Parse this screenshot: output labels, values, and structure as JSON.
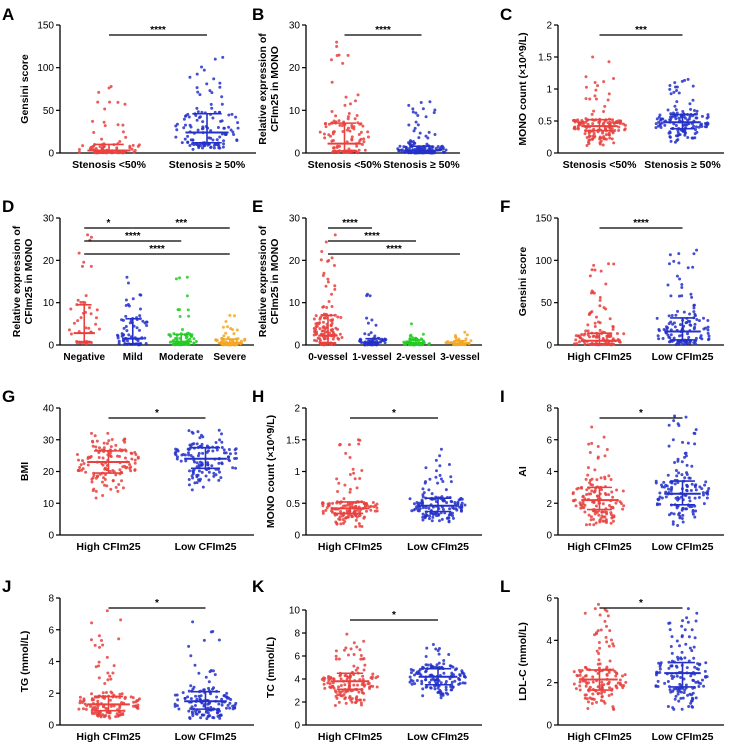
{
  "colors": {
    "red": "#e8413e",
    "blue": "#2431c9",
    "green": "#22cc22",
    "orange": "#f5a623",
    "axis": "#000000"
  },
  "chart_data": [
    {
      "type": "scatter",
      "panel": "A",
      "ylabel": "Gensini score",
      "ylim": [
        0,
        150
      ],
      "yticks": [
        0,
        50,
        100,
        150
      ],
      "categories": [
        "Stenosis <50%",
        "Stenosis ≥ 50%"
      ],
      "series": [
        {
          "name": "Stenosis <50%",
          "color": "red",
          "n": 80,
          "median": 3,
          "q1": 0.5,
          "q3": 10,
          "min": 0,
          "max": 78
        },
        {
          "name": "Stenosis ≥ 50%",
          "color": "blue",
          "n": 130,
          "median": 24,
          "q1": 12,
          "q3": 46,
          "min": 3,
          "max": 112
        }
      ],
      "sig": [
        {
          "from": 0,
          "to": 1,
          "level": 0,
          "label": "****"
        }
      ]
    },
    {
      "type": "scatter",
      "panel": "B",
      "ylabel": [
        "Relative expression of",
        "CFIm25 in MONO"
      ],
      "ylim": [
        0,
        30
      ],
      "yticks": [
        0,
        10,
        20,
        30
      ],
      "categories": [
        "Stenosis <50%",
        "Stenosis ≥ 50%"
      ],
      "series": [
        {
          "name": "Stenosis <50%",
          "color": "red",
          "n": 110,
          "median": 2.2,
          "q1": 0.5,
          "q3": 7,
          "min": 0,
          "max": 26
        },
        {
          "name": "Stenosis ≥ 50%",
          "color": "blue",
          "n": 140,
          "median": 0.6,
          "q1": 0.1,
          "q3": 1.6,
          "min": 0,
          "max": 12
        }
      ],
      "sig": [
        {
          "from": 0,
          "to": 1,
          "level": 0,
          "label": "****"
        }
      ]
    },
    {
      "type": "scatter",
      "panel": "C",
      "ylabel": "MONO count (×10^9/L)",
      "ylim": [
        0,
        2
      ],
      "yticks": [
        0,
        0.5,
        1,
        1.5,
        2
      ],
      "categories": [
        "Stenosis <50%",
        "Stenosis ≥ 50%"
      ],
      "series": [
        {
          "name": "Stenosis <50%",
          "color": "red",
          "n": 150,
          "median": 0.42,
          "q1": 0.35,
          "q3": 0.52,
          "min": 0.1,
          "max": 1.5
        },
        {
          "name": "Stenosis ≥ 50%",
          "color": "blue",
          "n": 140,
          "median": 0.48,
          "q1": 0.38,
          "q3": 0.6,
          "min": 0.15,
          "max": 1.15
        }
      ],
      "sig": [
        {
          "from": 0,
          "to": 1,
          "level": 0,
          "label": "***"
        }
      ]
    },
    {
      "type": "scatter",
      "panel": "D",
      "ylabel": [
        "Relative expression of",
        "CFIm25 in MONO"
      ],
      "ylim": [
        0,
        30
      ],
      "yticks": [
        0,
        10,
        20,
        30
      ],
      "categories": [
        "Negative",
        "Mild",
        "Moderate",
        "Severe"
      ],
      "series": [
        {
          "name": "Negative",
          "color": "red",
          "n": 45,
          "median": 2.8,
          "q1": 0.8,
          "q3": 9.5,
          "min": 0,
          "max": 26
        },
        {
          "name": "Mild",
          "color": "blue",
          "n": 70,
          "median": 1.5,
          "q1": 0.3,
          "q3": 6.2,
          "min": 0,
          "max": 16
        },
        {
          "name": "Moderate",
          "color": "green",
          "n": 70,
          "median": 0.8,
          "q1": 0.2,
          "q3": 2.5,
          "min": 0,
          "max": 16
        },
        {
          "name": "Severe",
          "color": "orange",
          "n": 60,
          "median": 0.5,
          "q1": 0.1,
          "q3": 1.4,
          "min": 0,
          "max": 7
        }
      ],
      "sig": [
        {
          "from": 0,
          "to": 1,
          "level": 0,
          "label": "*"
        },
        {
          "from": 1,
          "to": 3,
          "level": 0,
          "label": "***"
        },
        {
          "from": 0,
          "to": 2,
          "level": 1,
          "label": "****"
        },
        {
          "from": 0,
          "to": 3,
          "level": 2,
          "label": "****"
        }
      ]
    },
    {
      "type": "scatter",
      "panel": "E",
      "ylabel": [
        "Relative expression of",
        "CFIm25 in MONO"
      ],
      "ylim": [
        0,
        30
      ],
      "yticks": [
        0,
        10,
        20,
        30
      ],
      "categories": [
        "0-vessel",
        "1-vessel",
        "2-vessel",
        "3-vessel"
      ],
      "series": [
        {
          "name": "0-vessel",
          "color": "red",
          "n": 130,
          "median": 2.2,
          "q1": 0.5,
          "q3": 7,
          "min": 0,
          "max": 26
        },
        {
          "name": "1-vessel",
          "color": "blue",
          "n": 60,
          "median": 0.6,
          "q1": 0.1,
          "q3": 1.5,
          "min": 0,
          "max": 12
        },
        {
          "name": "2-vessel",
          "color": "green",
          "n": 45,
          "median": 0.5,
          "q1": 0.1,
          "q3": 1.2,
          "min": 0,
          "max": 5
        },
        {
          "name": "3-vessel",
          "color": "orange",
          "n": 30,
          "median": 0.4,
          "q1": 0.1,
          "q3": 1.0,
          "min": 0,
          "max": 3
        }
      ],
      "sig": [
        {
          "from": 0,
          "to": 1,
          "level": 0,
          "label": "****"
        },
        {
          "from": 0,
          "to": 2,
          "level": 1,
          "label": "****"
        },
        {
          "from": 0,
          "to": 3,
          "level": 2,
          "label": "****"
        }
      ]
    },
    {
      "type": "scatter",
      "panel": "F",
      "ylabel": "Gensini score",
      "ylim": [
        0,
        150
      ],
      "yticks": [
        0,
        50,
        100,
        150
      ],
      "categories": [
        "High CFIm25",
        "Low CFIm25"
      ],
      "series": [
        {
          "name": "High CFIm25",
          "color": "red",
          "n": 130,
          "median": 5,
          "q1": 1,
          "q3": 14,
          "min": 0,
          "max": 96
        },
        {
          "name": "Low CFIm25",
          "color": "blue",
          "n": 130,
          "median": 16,
          "q1": 6,
          "q3": 32,
          "min": 0,
          "max": 112
        }
      ],
      "sig": [
        {
          "from": 0,
          "to": 1,
          "level": 0,
          "label": "****"
        }
      ]
    },
    {
      "type": "scatter",
      "panel": "G",
      "ylabel": "BMI",
      "ylim": [
        0,
        40
      ],
      "yticks": [
        0,
        10,
        20,
        30,
        40
      ],
      "categories": [
        "High CFIm25",
        "Low CFIm25"
      ],
      "series": [
        {
          "name": "High CFIm25",
          "color": "red",
          "n": 130,
          "median": 23,
          "q1": 19.5,
          "q3": 26.5,
          "min": 10.5,
          "max": 32
        },
        {
          "name": "Low CFIm25",
          "color": "blue",
          "n": 130,
          "median": 24,
          "q1": 21,
          "q3": 27.5,
          "min": 14,
          "max": 33
        }
      ],
      "sig": [
        {
          "from": 0,
          "to": 1,
          "level": 0,
          "label": "*"
        }
      ]
    },
    {
      "type": "scatter",
      "panel": "H",
      "ylabel": "MONO count (×10^9/L)",
      "ylim": [
        0,
        2
      ],
      "yticks": [
        0,
        0.5,
        1,
        1.5,
        2
      ],
      "categories": [
        "High CFIm25",
        "Low CFIm25"
      ],
      "series": [
        {
          "name": "High CFIm25",
          "color": "red",
          "n": 140,
          "median": 0.42,
          "q1": 0.34,
          "q3": 0.52,
          "min": 0.1,
          "max": 1.5
        },
        {
          "name": "Low CFIm25",
          "color": "blue",
          "n": 140,
          "median": 0.46,
          "q1": 0.37,
          "q3": 0.58,
          "min": 0.15,
          "max": 1.35
        }
      ],
      "sig": [
        {
          "from": 0,
          "to": 1,
          "level": 0,
          "label": "*"
        }
      ]
    },
    {
      "type": "scatter",
      "panel": "I",
      "ylabel": "AI",
      "ylim": [
        0,
        8
      ],
      "yticks": [
        0,
        2,
        4,
        6,
        8
      ],
      "categories": [
        "High CFIm25",
        "Low CFIm25"
      ],
      "series": [
        {
          "name": "High CFIm25",
          "color": "red",
          "n": 140,
          "median": 2.2,
          "q1": 1.6,
          "q3": 3.0,
          "min": 0.4,
          "max": 6.8
        },
        {
          "name": "Low CFIm25",
          "color": "blue",
          "n": 140,
          "median": 2.6,
          "q1": 1.9,
          "q3": 3.4,
          "min": 0.5,
          "max": 7.5
        }
      ],
      "sig": [
        {
          "from": 0,
          "to": 1,
          "level": 0,
          "label": "*"
        }
      ]
    },
    {
      "type": "scatter",
      "panel": "J",
      "ylabel": "TG (mmol/L)",
      "ylim": [
        0,
        8
      ],
      "yticks": [
        0,
        2,
        4,
        6,
        8
      ],
      "categories": [
        "High CFIm25",
        "Low CFIm25"
      ],
      "series": [
        {
          "name": "High CFIm25",
          "color": "red",
          "n": 140,
          "median": 1.3,
          "q1": 0.9,
          "q3": 1.8,
          "min": 0.3,
          "max": 7.2
        },
        {
          "name": "Low CFIm25",
          "color": "blue",
          "n": 140,
          "median": 1.5,
          "q1": 1.0,
          "q3": 2.1,
          "min": 0.3,
          "max": 6.5
        }
      ],
      "sig": [
        {
          "from": 0,
          "to": 1,
          "level": 0,
          "label": "*"
        }
      ]
    },
    {
      "type": "scatter",
      "panel": "K",
      "ylabel": "TC (mmol/L)",
      "ylim": [
        0,
        10
      ],
      "yticks": [
        0,
        2,
        4,
        6,
        8,
        10
      ],
      "categories": [
        "High CFIm25",
        "Low CFIm25"
      ],
      "series": [
        {
          "name": "High CFIm25",
          "color": "red",
          "n": 140,
          "median": 3.8,
          "q1": 3.1,
          "q3": 4.5,
          "min": 1.5,
          "max": 7.9
        },
        {
          "name": "Low CFIm25",
          "color": "blue",
          "n": 140,
          "median": 4.2,
          "q1": 3.5,
          "q3": 4.9,
          "min": 2.0,
          "max": 7.0
        }
      ],
      "sig": [
        {
          "from": 0,
          "to": 1,
          "level": 0,
          "label": "*"
        }
      ]
    },
    {
      "type": "scatter",
      "panel": "L",
      "ylabel": "LDL-C (mmol/L)",
      "ylim": [
        0,
        6
      ],
      "yticks": [
        0,
        2,
        4,
        6
      ],
      "categories": [
        "High CFIm25",
        "Low CFIm25"
      ],
      "series": [
        {
          "name": "High CFIm25",
          "color": "red",
          "n": 140,
          "median": 2.15,
          "q1": 1.65,
          "q3": 2.6,
          "min": 0.5,
          "max": 5.7
        },
        {
          "name": "Low CFIm25",
          "color": "blue",
          "n": 140,
          "median": 2.45,
          "q1": 1.8,
          "q3": 2.95,
          "min": 0.6,
          "max": 5.5
        }
      ],
      "sig": [
        {
          "from": 0,
          "to": 1,
          "level": 0,
          "label": "*"
        }
      ]
    }
  ]
}
